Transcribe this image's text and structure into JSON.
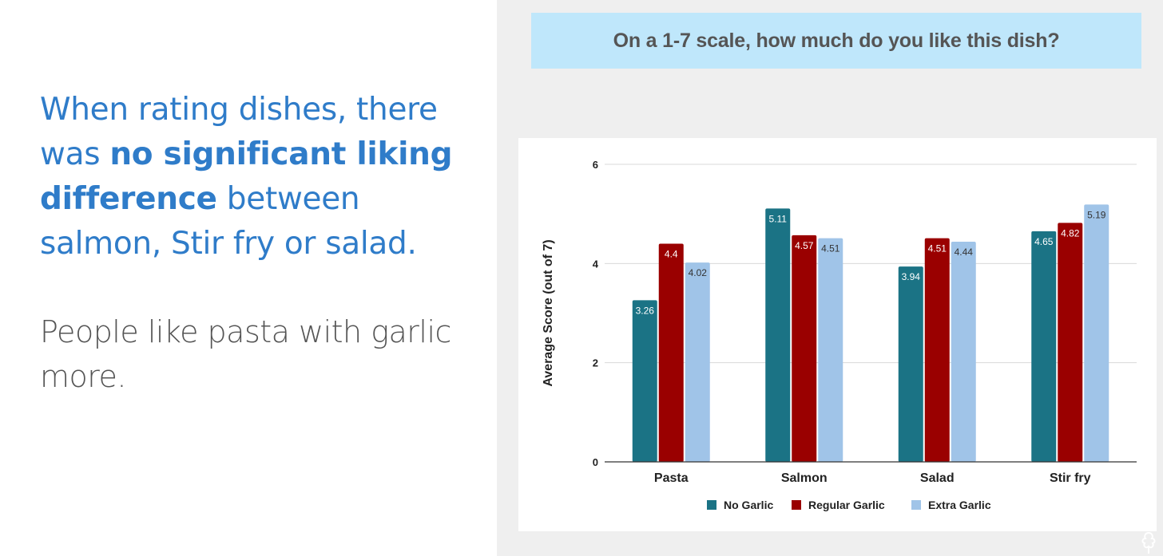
{
  "slide": {
    "headline": {
      "part1": "When rating dishes, there was ",
      "bold": "no significant liking difference",
      "part2": " between salmon, Stir fry or salad."
    },
    "subline": "People like pasta with garlic more.",
    "question": "On a 1-7 scale, how much do you like this dish?"
  },
  "chart_data": {
    "type": "bar",
    "categories": [
      "Pasta",
      "Salmon",
      "Salad",
      "Stir fry"
    ],
    "series": [
      {
        "name": "No Garlic",
        "color": "#1b7385",
        "values": [
          3.26,
          5.11,
          3.94,
          4.65
        ],
        "labels": [
          "3.26",
          "5.11",
          "3.94",
          "4.65"
        ]
      },
      {
        "name": "Regular Garlic",
        "color": "#9a0000",
        "values": [
          4.4,
          4.57,
          4.51,
          4.82
        ],
        "labels": [
          "4.4",
          "4.57",
          "4.51",
          "4.82"
        ]
      },
      {
        "name": "Extra Garlic",
        "color": "#a0c4e8",
        "values": [
          4.02,
          4.51,
          4.44,
          5.19
        ],
        "labels": [
          "4.02",
          "4.51",
          "4.44",
          "5.19"
        ]
      }
    ],
    "ylabel": "Average Score (out of 7)",
    "xlabel": "",
    "ylim": [
      0,
      6
    ],
    "yticks": [
      "0",
      "2",
      "4",
      "6"
    ],
    "grid": true,
    "legend": "bottom"
  }
}
